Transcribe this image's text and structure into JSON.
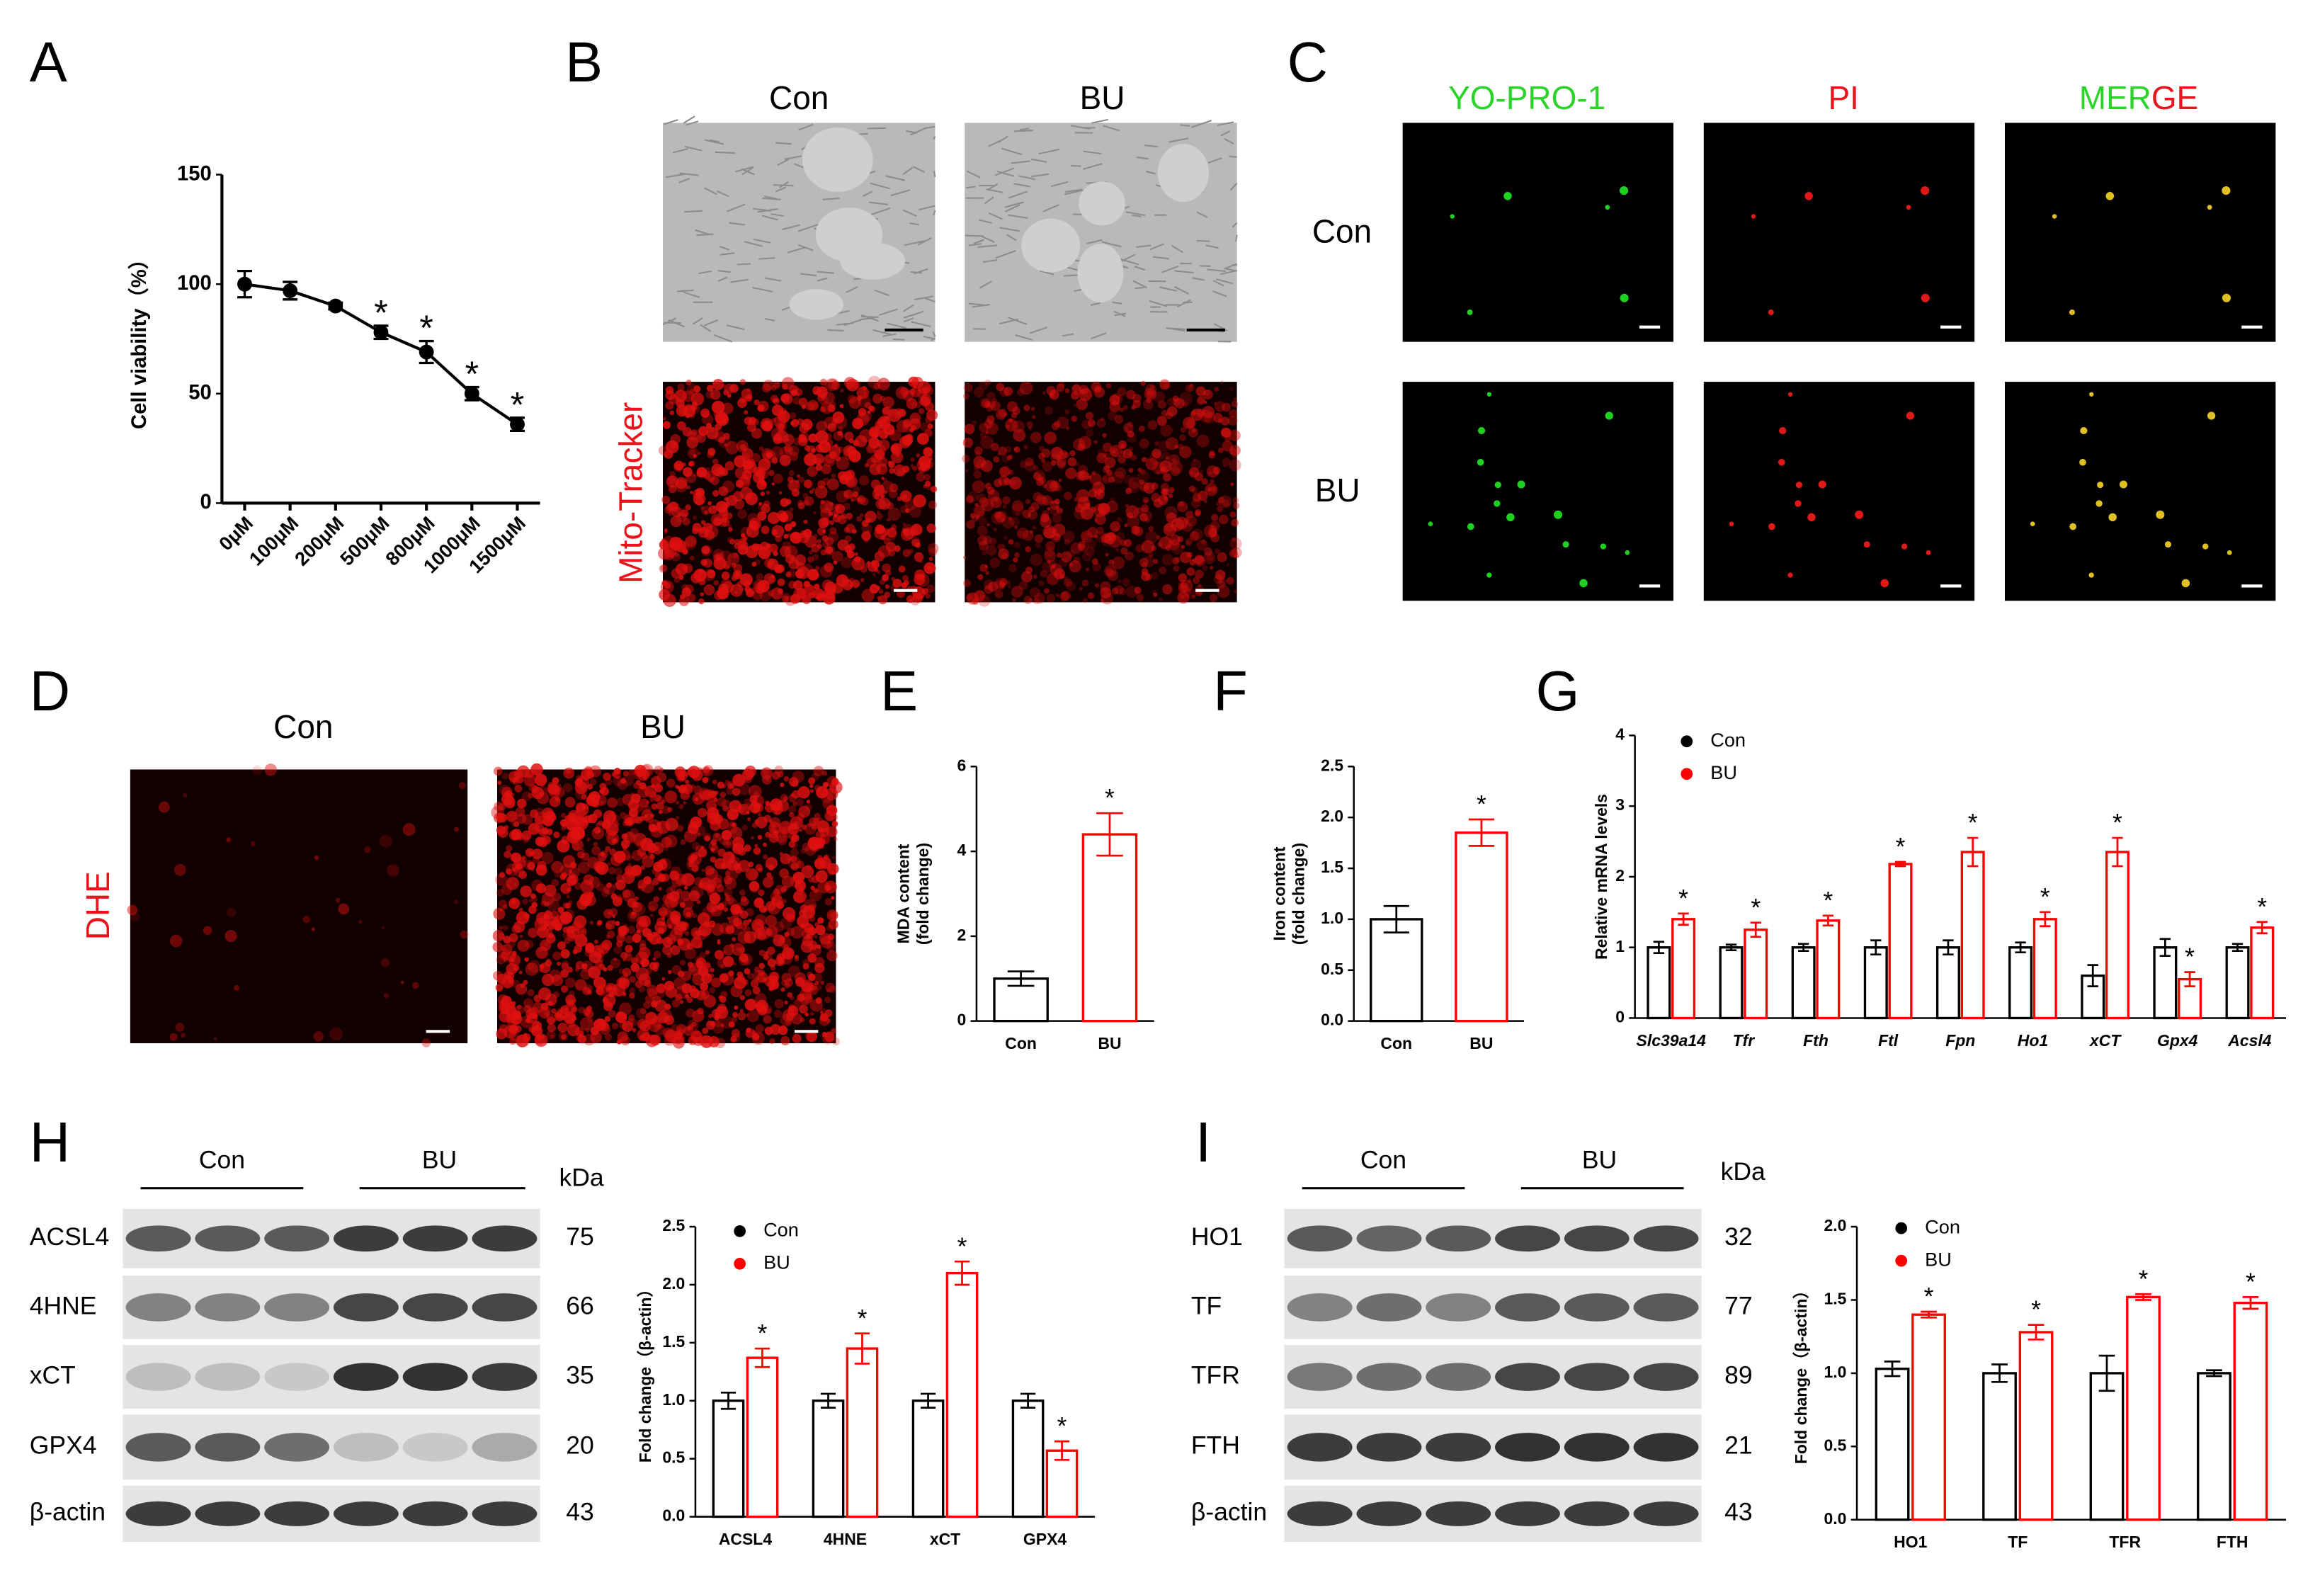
{
  "panels": [
    "A",
    "B",
    "C",
    "D",
    "E",
    "F",
    "G",
    "H",
    "I"
  ],
  "images": {
    "B": {
      "columns": [
        "Con",
        "BU"
      ],
      "row_label": "Mito-Tracker"
    },
    "C": {
      "columns": [
        "YO-PRO-1",
        "PI"
      ],
      "merge": [
        "MER",
        "GE"
      ],
      "rows": [
        "Con",
        "BU"
      ]
    },
    "D": {
      "columns": [
        "Con",
        "BU"
      ],
      "row_label": "DHE"
    }
  },
  "blots": [
    {
      "groups": [
        "Con",
        "BU"
      ],
      "unit": "kDa",
      "rows": [
        {
          "label": "ACSL4",
          "kda": 75
        },
        {
          "label": "4HNE",
          "kda": 66
        },
        {
          "label": "xCT",
          "kda": 35
        },
        {
          "label": "GPX4",
          "kda": 20
        },
        {
          "label": "β-actin",
          "kda": 43
        }
      ]
    },
    {
      "groups": [
        "Con",
        "BU"
      ],
      "unit": "kDa",
      "rows": [
        {
          "label": "HO1",
          "kda": 32
        },
        {
          "label": "TF",
          "kda": 77
        },
        {
          "label": "TFR",
          "kda": 89
        },
        {
          "label": "FTH",
          "kda": 21
        },
        {
          "label": "β-actin",
          "kda": 43
        }
      ]
    }
  ],
  "chart_data": [
    {
      "type": "line",
      "ylabel": "Cell viability（%）",
      "categories": [
        "0μM",
        "100μM",
        "200μM",
        "500μM",
        "800μM",
        "1000μM",
        "1500μM"
      ],
      "values": [
        100,
        97,
        90,
        78,
        69,
        50,
        36
      ],
      "errors": [
        6,
        4,
        1.5,
        3,
        5,
        3,
        3
      ],
      "significance": [
        null,
        null,
        null,
        "*",
        "*",
        "*",
        "*"
      ],
      "color": "#000000",
      "ylim": [
        0,
        150
      ],
      "yticks": [
        0,
        50,
        100,
        150
      ]
    },
    {
      "type": "bar",
      "ylabel": [
        "MDA content",
        "(fold change)"
      ],
      "categories": [
        "Con",
        "BU"
      ],
      "values": [
        1.0,
        4.4
      ],
      "errors": [
        0.17,
        0.5
      ],
      "significance": [
        null,
        "*"
      ],
      "colors": [
        "#000000",
        "#ff0000"
      ],
      "ylim": [
        0,
        6
      ],
      "yticks": [
        0,
        2,
        4,
        6
      ]
    },
    {
      "type": "bar",
      "ylabel": [
        "Iron content",
        "(fold change)"
      ],
      "categories": [
        "Con",
        "BU"
      ],
      "values": [
        1.0,
        1.85
      ],
      "errors": [
        0.13,
        0.13
      ],
      "significance": [
        null,
        "*"
      ],
      "colors": [
        "#000000",
        "#ff0000"
      ],
      "ylim": [
        0,
        2.5
      ],
      "yticks": [
        {
          "value": 0,
          "label": "0.0"
        },
        {
          "value": 0.5,
          "label": "0.5"
        },
        {
          "value": 1,
          "label": "1.0"
        },
        {
          "value": 1.5,
          "label": "1.5"
        },
        {
          "value": 2,
          "label": "2.0"
        },
        {
          "value": 2.5,
          "label": "2.5"
        }
      ]
    },
    {
      "type": "bar",
      "ylabel": "Relative mRNA levels",
      "categories": [
        "Slc39a14",
        "Tfr",
        "Fth",
        "Ftl",
        "Fpn",
        "Ho1",
        "xCT",
        "Gpx4",
        "Acsl4"
      ],
      "series": [
        {
          "name": "Con",
          "color": "#000000",
          "values": [
            1.0,
            1.0,
            1.0,
            1.0,
            1.0,
            1.0,
            0.6,
            1.0,
            1.0
          ],
          "errors": [
            0.08,
            0.04,
            0.05,
            0.1,
            0.1,
            0.07,
            0.15,
            0.12,
            0.05
          ]
        },
        {
          "name": "BU",
          "color": "#ff0000",
          "values": [
            1.4,
            1.25,
            1.38,
            2.18,
            2.35,
            1.4,
            2.35,
            0.55,
            1.28
          ],
          "errors": [
            0.08,
            0.1,
            0.07,
            0.03,
            0.2,
            0.1,
            0.2,
            0.1,
            0.08
          ],
          "significance": [
            "*",
            "*",
            "*",
            "*",
            "*",
            "*",
            "*",
            "*",
            "*"
          ]
        }
      ],
      "ylim": [
        0,
        4
      ],
      "yticks": [
        0,
        1,
        2,
        3,
        4
      ],
      "legend": "upper left"
    },
    {
      "type": "bar",
      "ylabel": "Fold change（β-actin）",
      "categories": [
        "ACSL4",
        "4HNE",
        "xCT",
        "GPX4"
      ],
      "series": [
        {
          "name": "Con",
          "color": "#000000",
          "values": [
            1.0,
            1.0,
            1.0,
            1.0
          ],
          "errors": [
            0.07,
            0.06,
            0.06,
            0.06
          ]
        },
        {
          "name": "BU",
          "color": "#ff0000",
          "values": [
            1.37,
            1.45,
            2.1,
            0.57
          ],
          "errors": [
            0.08,
            0.13,
            0.1,
            0.08
          ],
          "significance": [
            "*",
            "*",
            "*",
            "*"
          ]
        }
      ],
      "ylim": [
        0,
        2.5
      ],
      "yticks": [
        {
          "value": 0,
          "label": "0.0"
        },
        {
          "value": 0.5,
          "label": "0.5"
        },
        {
          "value": 1,
          "label": "1.0"
        },
        {
          "value": 1.5,
          "label": "1.5"
        },
        {
          "value": 2,
          "label": "2.0"
        },
        {
          "value": 2.5,
          "label": "2.5"
        }
      ],
      "legend": "upper left"
    },
    {
      "type": "bar",
      "ylabel": "Fold change（β-actin）",
      "categories": [
        "HO1",
        "TF",
        "TFR",
        "FTH"
      ],
      "series": [
        {
          "name": "Con",
          "color": "#000000",
          "values": [
            1.03,
            1.0,
            1.0,
            1.0
          ],
          "errors": [
            0.05,
            0.06,
            0.12,
            0.02
          ]
        },
        {
          "name": "BU",
          "color": "#ff0000",
          "values": [
            1.4,
            1.28,
            1.52,
            1.48
          ],
          "errors": [
            0.02,
            0.05,
            0.02,
            0.04
          ],
          "significance": [
            "*",
            "*",
            "*",
            "*"
          ]
        }
      ],
      "ylim": [
        0,
        2.0
      ],
      "yticks": [
        {
          "value": 0,
          "label": "0.0"
        },
        {
          "value": 0.5,
          "label": "0.5"
        },
        {
          "value": 1,
          "label": "1.0"
        },
        {
          "value": 1.5,
          "label": "1.5"
        },
        {
          "value": 2,
          "label": "2.0"
        }
      ],
      "legend": "upper left"
    }
  ]
}
